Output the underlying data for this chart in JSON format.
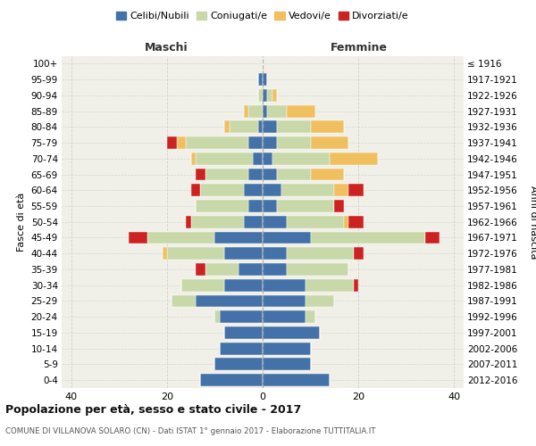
{
  "age_groups": [
    "0-4",
    "5-9",
    "10-14",
    "15-19",
    "20-24",
    "25-29",
    "30-34",
    "35-39",
    "40-44",
    "45-49",
    "50-54",
    "55-59",
    "60-64",
    "65-69",
    "70-74",
    "75-79",
    "80-84",
    "85-89",
    "90-94",
    "95-99",
    "100+"
  ],
  "birth_years": [
    "2012-2016",
    "2007-2011",
    "2002-2006",
    "1997-2001",
    "1992-1996",
    "1987-1991",
    "1982-1986",
    "1977-1981",
    "1972-1976",
    "1967-1971",
    "1962-1966",
    "1957-1961",
    "1952-1956",
    "1947-1951",
    "1942-1946",
    "1937-1941",
    "1932-1936",
    "1927-1931",
    "1922-1926",
    "1917-1921",
    "≤ 1916"
  ],
  "male_celibi": [
    13,
    10,
    9,
    8,
    9,
    14,
    8,
    5,
    8,
    10,
    4,
    3,
    4,
    3,
    2,
    3,
    1,
    0,
    0,
    1,
    0
  ],
  "male_coniugati": [
    0,
    0,
    0,
    0,
    1,
    5,
    9,
    7,
    12,
    14,
    11,
    11,
    9,
    9,
    12,
    13,
    6,
    3,
    1,
    0,
    0
  ],
  "male_vedovi": [
    0,
    0,
    0,
    0,
    0,
    0,
    0,
    0,
    1,
    0,
    0,
    0,
    0,
    0,
    1,
    2,
    1,
    1,
    0,
    0,
    0
  ],
  "male_divorziati": [
    0,
    0,
    0,
    0,
    0,
    0,
    0,
    2,
    0,
    4,
    1,
    0,
    2,
    2,
    0,
    2,
    0,
    0,
    0,
    0,
    0
  ],
  "female_celibi": [
    14,
    10,
    10,
    12,
    9,
    9,
    9,
    5,
    5,
    10,
    5,
    3,
    4,
    3,
    2,
    3,
    3,
    1,
    1,
    1,
    0
  ],
  "female_coniugati": [
    0,
    0,
    0,
    0,
    2,
    6,
    10,
    13,
    14,
    24,
    12,
    12,
    11,
    7,
    12,
    7,
    7,
    4,
    1,
    0,
    0
  ],
  "female_vedovi": [
    0,
    0,
    0,
    0,
    0,
    0,
    0,
    0,
    0,
    0,
    1,
    0,
    3,
    7,
    10,
    8,
    7,
    6,
    1,
    0,
    0
  ],
  "female_divorziati": [
    0,
    0,
    0,
    0,
    0,
    0,
    1,
    0,
    2,
    3,
    3,
    2,
    3,
    0,
    0,
    0,
    0,
    0,
    0,
    0,
    0
  ],
  "color_celibi": "#4472a8",
  "color_coniugati": "#c8d8a8",
  "color_vedovi": "#f0c060",
  "color_divorziati": "#cc2222",
  "title": "Popolazione per età, sesso e stato civile - 2017",
  "subtitle": "COMUNE DI VILLANOVA SOLARO (CN) - Dati ISTAT 1° gennaio 2017 - Elaborazione TUTTITALIA.IT",
  "xlabel_left": "Maschi",
  "xlabel_right": "Femmine",
  "ylabel_left": "Fasce di età",
  "ylabel_right": "Anni di nascita",
  "xlim": 42,
  "background_color": "#ffffff",
  "plot_bg": "#f0f0e8",
  "grid_color": "#cccccc"
}
